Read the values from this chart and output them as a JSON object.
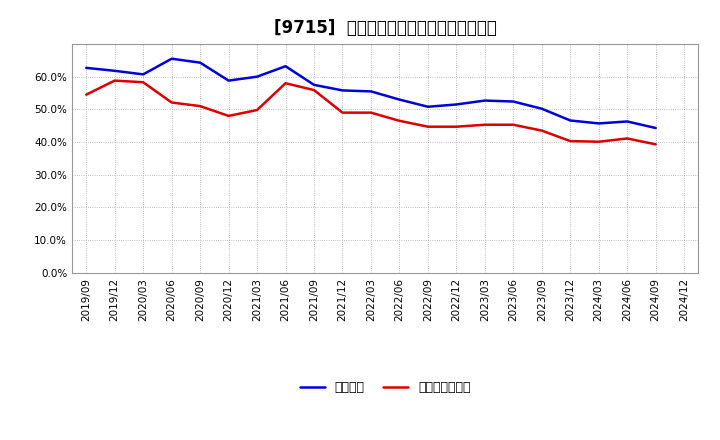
{
  "title": "[9715]  固定比率、固定長期適合率の推移",
  "x_labels": [
    "2019/09",
    "2019/12",
    "2020/03",
    "2020/06",
    "2020/09",
    "2020/12",
    "2021/03",
    "2021/06",
    "2021/09",
    "2021/12",
    "2022/03",
    "2022/06",
    "2022/09",
    "2022/12",
    "2023/03",
    "2023/06",
    "2023/09",
    "2023/12",
    "2024/03",
    "2024/06",
    "2024/09",
    "2024/12"
  ],
  "fixed_ratio": [
    0.627,
    0.618,
    0.607,
    0.655,
    0.643,
    0.588,
    0.6,
    0.632,
    0.575,
    0.558,
    0.555,
    0.53,
    0.508,
    0.515,
    0.527,
    0.524,
    0.502,
    0.466,
    0.457,
    0.463,
    0.443,
    null
  ],
  "fixed_long_term_ratio": [
    0.545,
    0.588,
    0.583,
    0.521,
    0.51,
    0.48,
    0.498,
    0.58,
    0.559,
    0.49,
    0.49,
    0.465,
    0.447,
    0.447,
    0.453,
    0.453,
    0.435,
    0.403,
    0.401,
    0.411,
    0.393,
    null
  ],
  "line_color_blue": "#0000dd",
  "line_color_red": "#dd0000",
  "bg_color": "#ffffff",
  "plot_bg_color": "#ffffff",
  "grid_color": "#aaaaaa",
  "legend_label_blue": "固定比率",
  "legend_label_red": "固定長期適合率",
  "ylim": [
    0.0,
    0.7
  ],
  "yticks": [
    0.0,
    0.1,
    0.2,
    0.3,
    0.4,
    0.5,
    0.6
  ],
  "title_fontsize": 12,
  "tick_fontsize": 7.5,
  "legend_fontsize": 9
}
